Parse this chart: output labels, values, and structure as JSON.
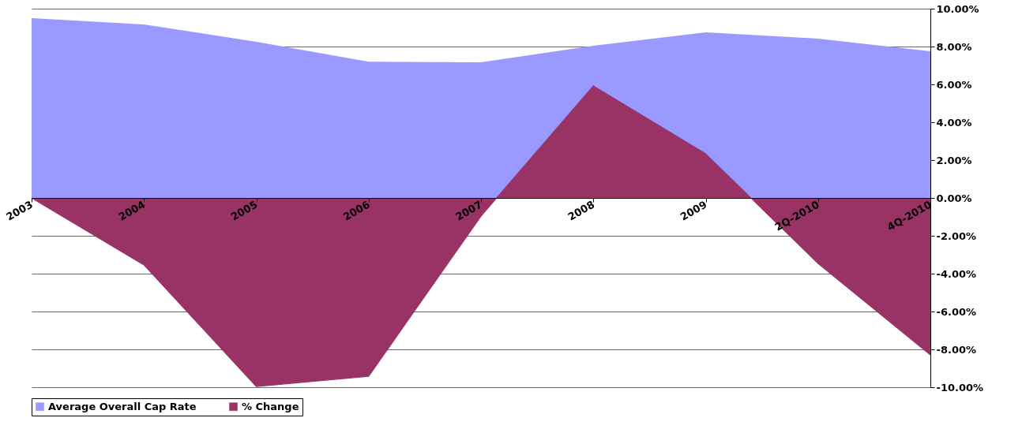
{
  "chart_data": {
    "type": "area",
    "categories": [
      "2003",
      "2004",
      "2005",
      "2006",
      "2007",
      "2008",
      "2009",
      "2Q-2010",
      "4Q-2010"
    ],
    "series": [
      {
        "name": "Average Overall Cap Rate",
        "color": "#9999ff",
        "values": [
          9.5,
          9.17,
          8.25,
          7.2,
          7.17,
          8.04,
          8.75,
          8.42,
          7.75
        ]
      },
      {
        "name": "% Change",
        "color": "#993366",
        "line_style": "solid",
        "values": [
          0,
          -3.54,
          -9.96,
          -9.42,
          -0.96,
          5.92,
          2.33,
          -3.46,
          -8.29
        ]
      }
    ],
    "ylim": [
      -10,
      10
    ],
    "yticks": [
      {
        "value": -10,
        "label": "-10.00%"
      },
      {
        "value": -8,
        "label": "-8.00%"
      },
      {
        "value": -6,
        "label": "-6.00%"
      },
      {
        "value": -4,
        "label": "-4.00%"
      },
      {
        "value": -2,
        "label": "-2.00%"
      },
      {
        "value": 0,
        "label": "0.00%"
      },
      {
        "value": 2,
        "label": "2.00%"
      },
      {
        "value": 4,
        "label": "4.00%"
      },
      {
        "value": 6,
        "label": "6.00%"
      },
      {
        "value": 8,
        "label": "8.00%"
      },
      {
        "value": 10,
        "label": "10.00%"
      }
    ],
    "grid": "y",
    "legend": "bottom left"
  }
}
